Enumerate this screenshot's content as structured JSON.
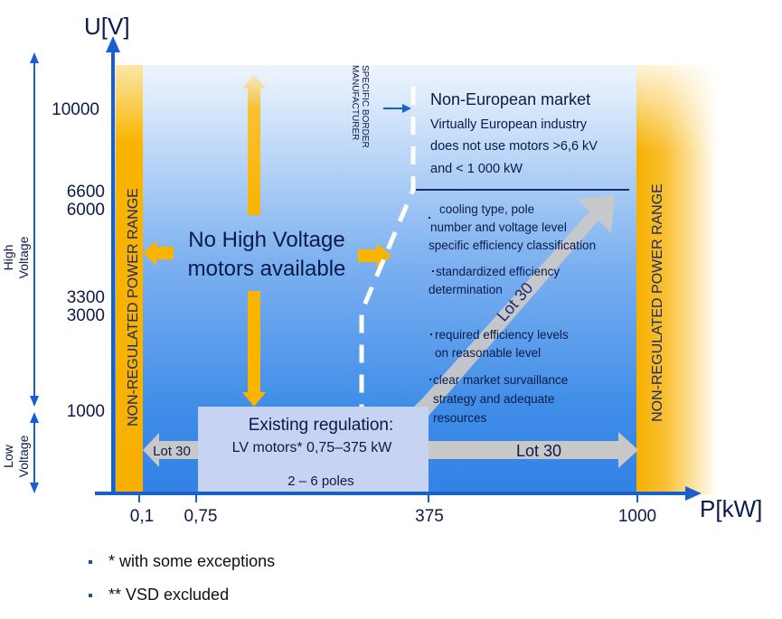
{
  "axes": {
    "y_label": "U[V]",
    "x_label": "P[kW]",
    "y_ticks": [
      "10000",
      "6600",
      "6000",
      "3300",
      "3000",
      "1000"
    ],
    "x_ticks": [
      "0,1",
      "0,75",
      "375",
      "1000"
    ]
  },
  "voltage_bands": {
    "high": [
      "High",
      "Voltage"
    ],
    "low": [
      "Low",
      "Voltage"
    ]
  },
  "non_regulated_label": "NON-REGULATED POWER RANGE",
  "no_hv": [
    "No High Voltage",
    "motors available"
  ],
  "manufacturer_border": [
    "MANUFACTURER",
    "SPECIFIC BORDER"
  ],
  "non_european": {
    "title": "Non-European market",
    "lines": [
      "Virtually European industry",
      "does not  use motors >6,6 kV",
      "and < 1 000 kW"
    ]
  },
  "bullets": [
    [
      "cooling type,  pole",
      " number  and voltage level",
      "specific  efficiency classification"
    ],
    [
      "  standardized efficiency",
      "determination"
    ],
    [
      "required efficiency levels",
      " on reasonable level"
    ],
    [
      "clear market survaillance",
      " strategy and adequate",
      " resources"
    ]
  ],
  "lot30": {
    "diag": "Lot 30",
    "right": "Lot 30",
    "left": "Lot 30"
  },
  "existing": {
    "title": "Existing regulation:",
    "line": "LV motors* 0,75–375 kW",
    "poles": "2 – 6 poles"
  },
  "notes": [
    "* with some exceptions",
    "** VSD excluded"
  ],
  "colors": {
    "axis": "#1a5fd0",
    "orange": "#f9b400",
    "bg_blue": "#3f8de8",
    "grey_arrow": "#c8c8c8",
    "box": "#c7d3f3"
  }
}
